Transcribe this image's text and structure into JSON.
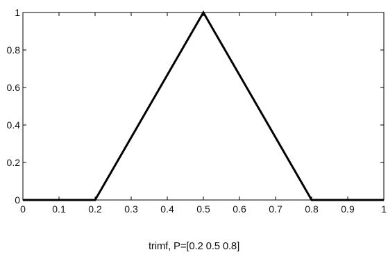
{
  "chart_data": {
    "type": "line",
    "title": "",
    "xlabel": "trimf, P=[0.2 0.5 0.8]",
    "ylabel": "",
    "xlim": [
      0,
      1
    ],
    "ylim": [
      0,
      1
    ],
    "x_ticks": [
      0,
      0.1,
      0.2,
      0.3,
      0.4,
      0.5,
      0.6,
      0.7,
      0.8,
      0.9,
      1
    ],
    "x_tick_labels": [
      "0",
      "0.1",
      "0.2",
      "0.3",
      "0.4",
      "0.5",
      "0.6",
      "0.7",
      "0.8",
      "0.9",
      "1"
    ],
    "y_ticks": [
      0,
      0.2,
      0.4,
      0.6,
      0.8,
      1
    ],
    "y_tick_labels": [
      "0",
      "0.2",
      "0.4",
      "0.6",
      "0.8",
      "1"
    ],
    "grid": false,
    "series": [
      {
        "x": [
          0,
          0.2,
          0.5,
          0.8,
          1
        ],
        "y": [
          0,
          0,
          1,
          0,
          0
        ],
        "color": "#000000"
      }
    ]
  }
}
